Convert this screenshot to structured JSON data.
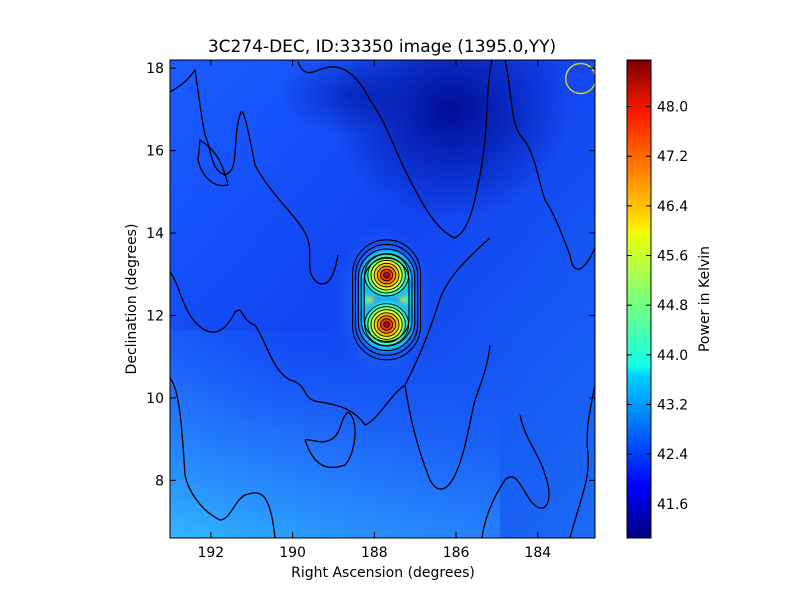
{
  "chart_data": {
    "type": "heatmap",
    "title": "3C274-DEC, ID:33350 image (1395.0,YY)",
    "xlabel": "Right Ascension (degrees)",
    "ylabel": "Declination (degrees)",
    "colorbar_label": "Power in Kelvin",
    "colormap": "jet",
    "xlim": [
      193.0,
      182.6
    ],
    "ylim": [
      6.6,
      18.2
    ],
    "x_ticks": [
      "192",
      "190",
      "188",
      "186",
      "184"
    ],
    "x_tick_values": [
      192,
      190,
      188,
      186,
      184
    ],
    "y_ticks": [
      "8",
      "10",
      "12",
      "14",
      "16",
      "18"
    ],
    "y_tick_values": [
      8,
      10,
      12,
      14,
      16,
      18
    ],
    "colorbar_range": [
      41.05,
      48.75
    ],
    "colorbar_ticks": [
      "41.6",
      "42.4",
      "43.2",
      "44.0",
      "44.8",
      "45.6",
      "46.4",
      "47.2",
      "48.0"
    ],
    "colorbar_tick_values": [
      41.6,
      42.4,
      43.2,
      44.0,
      44.8,
      45.6,
      46.4,
      47.2,
      48.0
    ],
    "sources": [
      {
        "ra": 187.7,
        "dec": 12.98,
        "peak": 48.6
      },
      {
        "ra": 187.7,
        "dec": 11.78,
        "peak": 48.7
      }
    ],
    "beam_marker": {
      "ra": 182.95,
      "dec": 17.75,
      "color": "#cccc33"
    },
    "grid": false
  }
}
